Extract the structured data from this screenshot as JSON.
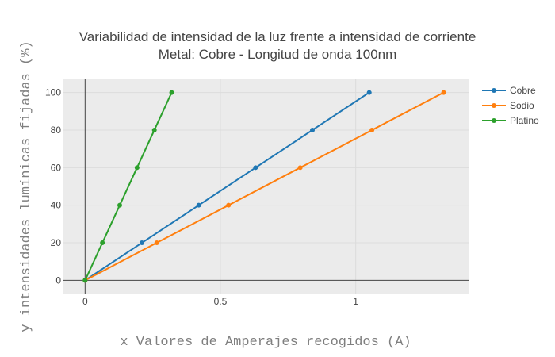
{
  "chart_data": {
    "type": "line",
    "title_line1": "Variabilidad de intensidad de la luz frente a intensidad de corriente",
    "title_line2": "Metal: Cobre - Longitud de onda 100nm",
    "xlabel": "x Valores de Amperajes recogidos (A)",
    "ylabel": "y intensidades lumínicas fijadas (%)",
    "xlim": [
      -0.08,
      1.42
    ],
    "ylim": [
      -7,
      107
    ],
    "x_ticks": [
      0,
      0.5,
      1
    ],
    "x_tick_labels": [
      "0",
      "0.5",
      "1"
    ],
    "y_ticks": [
      0,
      20,
      40,
      60,
      80,
      100
    ],
    "y_tick_labels": [
      "0",
      "20",
      "40",
      "60",
      "80",
      "100"
    ],
    "grid": true,
    "plot_background": "#ebebeb",
    "legend_position": "right",
    "series": [
      {
        "name": "Cobre",
        "color": "#1f77b4",
        "x": [
          0,
          0.21,
          0.42,
          0.63,
          0.84,
          1.05
        ],
        "y": [
          0,
          20,
          40,
          60,
          80,
          100
        ]
      },
      {
        "name": "Sodio",
        "color": "#ff7f0e",
        "x": [
          0,
          0.265,
          0.53,
          0.795,
          1.06,
          1.325
        ],
        "y": [
          0,
          20,
          40,
          60,
          80,
          100
        ]
      },
      {
        "name": "Platino",
        "color": "#2ca02c",
        "x": [
          0,
          0.064,
          0.128,
          0.192,
          0.256,
          0.32
        ],
        "y": [
          0,
          20,
          40,
          60,
          80,
          100
        ]
      }
    ]
  }
}
